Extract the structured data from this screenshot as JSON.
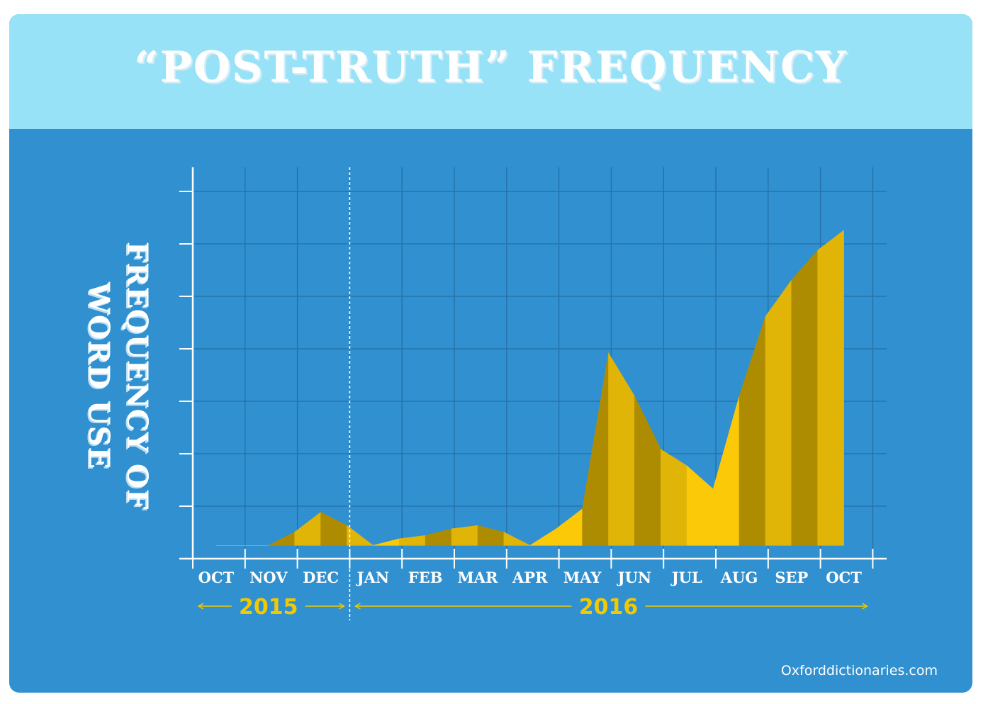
{
  "title": "“POST-TRUTH” FREQUENCY",
  "source": "Oxforddictionaries.com",
  "colors": {
    "header_bg": "#98e2f8",
    "panel_bg": "#3090d0",
    "area_light": "#fcc908",
    "area_mid": "#e0b508",
    "area_dark": "#ae8c02",
    "year_label": "#f4c800"
  },
  "chart_data": {
    "type": "area",
    "title": "“POST-TRUTH” FREQUENCY",
    "ylabel": "FREQUENCY OF\nWORD USE",
    "xlabel": "",
    "categories": [
      "OCT",
      "NOV",
      "DEC",
      "JAN",
      "FEB",
      "MAR",
      "APR",
      "MAY",
      "JUN",
      "JUL",
      "AUG",
      "SEP",
      "OCT"
    ],
    "year_groups": [
      {
        "label": "2015",
        "months": [
          "OCT",
          "NOV",
          "DEC"
        ]
      },
      {
        "label": "2016",
        "months": [
          "JAN",
          "FEB",
          "MAR",
          "APR",
          "MAY",
          "JUN",
          "JUL",
          "AUG",
          "SEP",
          "OCT"
        ]
      }
    ],
    "series": [
      {
        "x": [
          0,
          1,
          1.5,
          2,
          2.5,
          3,
          3.5,
          4,
          4.5,
          5,
          5.5,
          6,
          6.5,
          7,
          7.5,
          8,
          8.5,
          9,
          9.5,
          10,
          10.5,
          11,
          11.5,
          12
        ],
        "values": [
          0,
          0,
          0.4,
          1,
          0.6,
          0,
          0.2,
          0.3,
          0.5,
          0.6,
          0.4,
          0,
          0.5,
          1.1,
          5.8,
          4.5,
          2.9,
          2.4,
          1.7,
          4.5,
          6.9,
          8.0,
          8.9,
          9.5
        ]
      }
    ],
    "ylim": [
      -0.4,
      11.4
    ],
    "y_ticks": 7,
    "grid": true,
    "legend": "none"
  }
}
